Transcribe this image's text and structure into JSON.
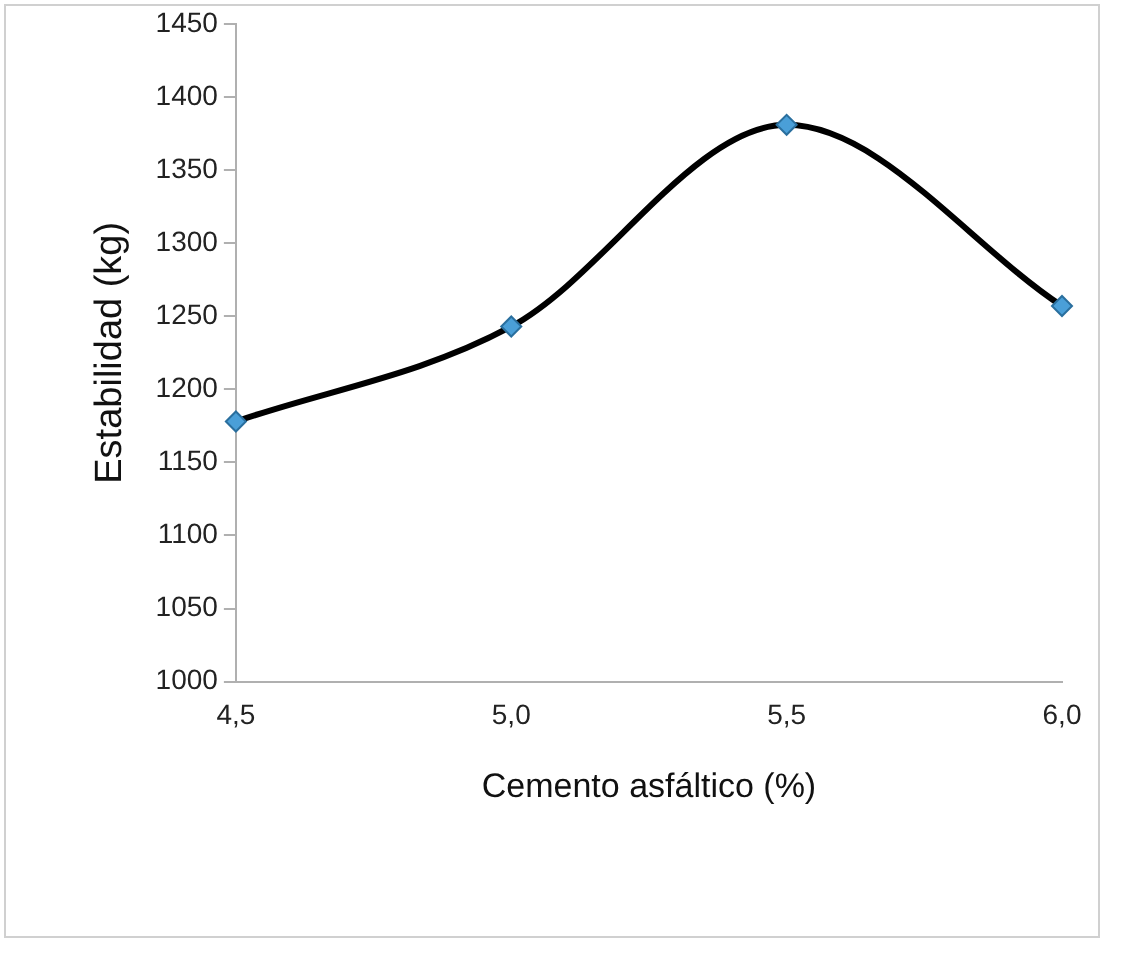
{
  "chart_data": {
    "type": "line",
    "xlabel": "Cemento asfáltico (%)",
    "ylabel": "Estabilidad (kg)",
    "categories": [
      "4,5",
      "5,0",
      "5,5",
      "6,0"
    ],
    "series": [
      {
        "color": "#4a9fd8",
        "values": [
          1178,
          1243,
          1381,
          1257
        ]
      }
    ],
    "ylim": [
      1000,
      1450
    ],
    "yticks": [
      1000,
      1050,
      1100,
      1150,
      1200,
      1250,
      1300,
      1350,
      1400,
      1450
    ],
    "grid": false,
    "legend": false,
    "marker": "diamond",
    "line_style": "solid"
  }
}
